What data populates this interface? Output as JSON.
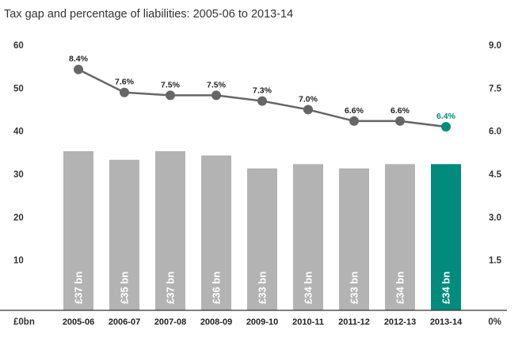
{
  "chart_data": {
    "type": "bar",
    "title": "Tax gap and percentage of liabilities: 2005-06 to 2013-14",
    "categories": [
      "2005-06",
      "2006-07",
      "2007-08",
      "2008-09",
      "2009-10",
      "2010-11",
      "2011-12",
      "2012-13",
      "2013-14"
    ],
    "series": [
      {
        "name": "Tax gap",
        "axis": "left",
        "values": [
          37,
          35,
          37,
          36,
          33,
          34,
          33,
          34,
          34
        ],
        "labels": [
          "£37 bn",
          "£35 bn",
          "£37 bn",
          "£36 bn",
          "£33 bn",
          "£34 bn",
          "£33 bn",
          "£34 bn",
          "£34 bn"
        ]
      },
      {
        "name": "Percentage of liabilities",
        "type": "line",
        "axis": "right",
        "values": [
          8.4,
          7.6,
          7.5,
          7.5,
          7.3,
          7.0,
          6.6,
          6.6,
          6.4
        ],
        "labels": [
          "8.4%",
          "7.6%",
          "7.5%",
          "7.5%",
          "7.3%",
          "7.0%",
          "6.6%",
          "6.6%",
          "6.4%"
        ]
      }
    ],
    "y_left": {
      "ylim": [
        0,
        60
      ],
      "ticks": [
        "£0bn",
        "10",
        "20",
        "30",
        "40",
        "50",
        "60"
      ]
    },
    "y_right": {
      "ylim": [
        0,
        9
      ],
      "ticks": [
        "0%",
        "1.5",
        "3.0",
        "4.5",
        "6.0",
        "7.5",
        "9.0"
      ]
    },
    "highlight_index": 8,
    "colors": {
      "bar": "#b3b3b3",
      "highlight": "#008b7d",
      "line": "#666666",
      "text": "#222222",
      "axis": "#333333"
    }
  }
}
